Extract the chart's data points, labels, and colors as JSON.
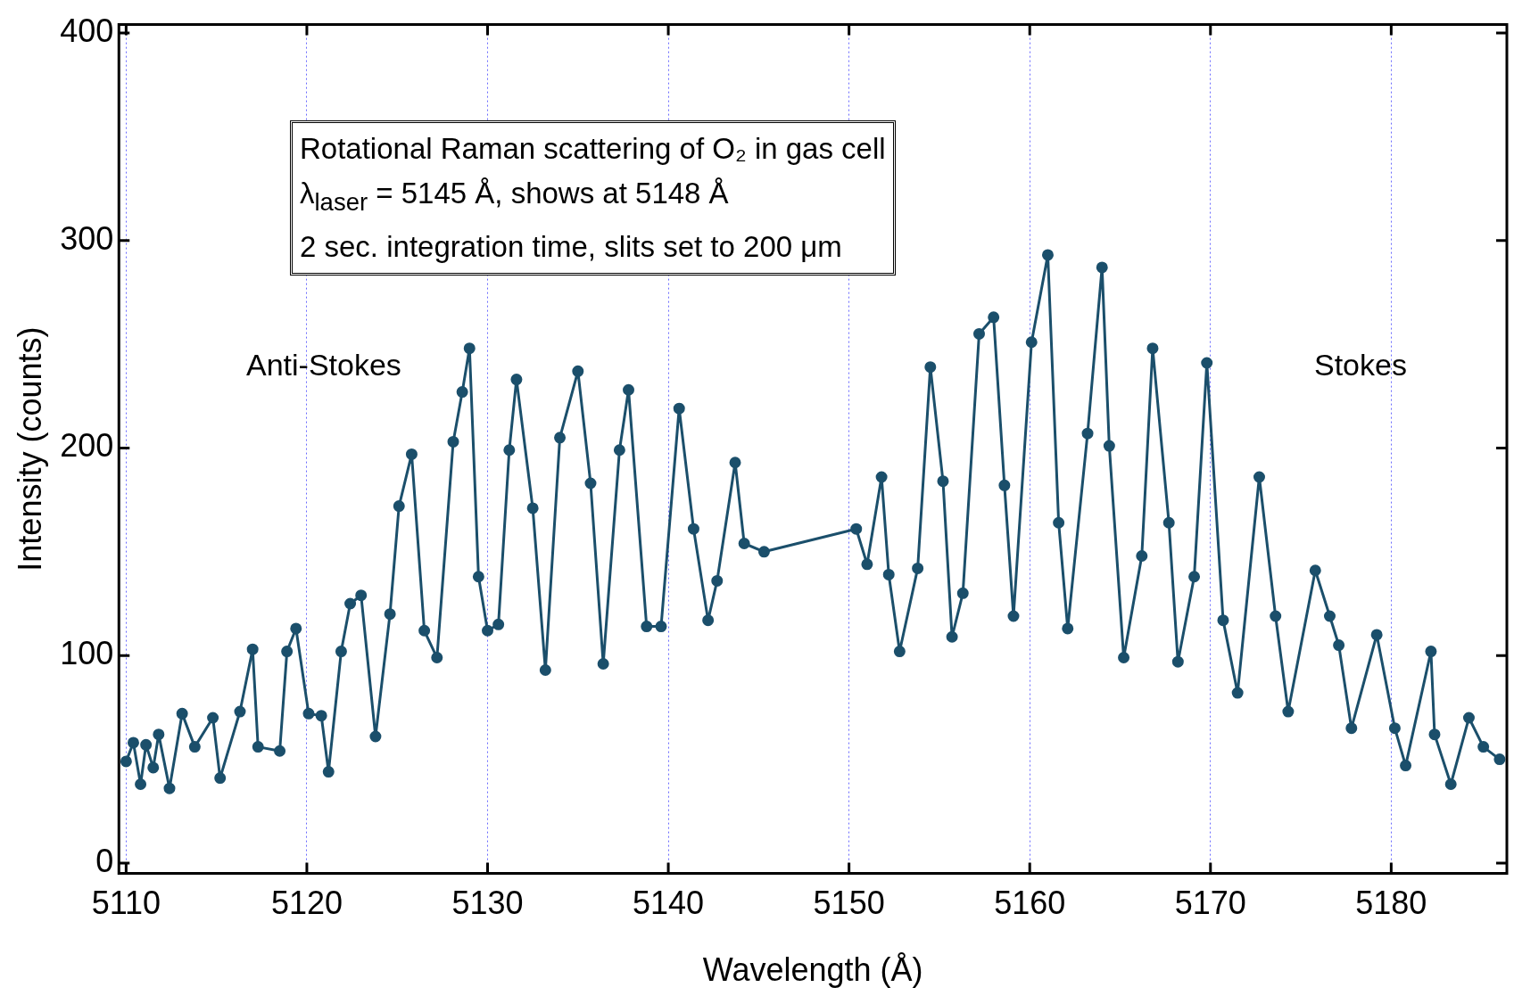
{
  "chart_data": {
    "type": "line",
    "xlabel": "Wavelength (Å)",
    "ylabel": "Intensity (counts)",
    "xlim": [
      5109.6,
      5186.4
    ],
    "xticks": [
      5110,
      5120,
      5130,
      5140,
      5150,
      5160,
      5170,
      5180
    ],
    "ylim": [
      -5,
      404
    ],
    "yticks": [
      0,
      100,
      200,
      300,
      400
    ],
    "grid": "x",
    "marker": "circle",
    "line_style": "solid",
    "annotations": [
      "Rotational Raman scattering of O₂ in gas cell",
      "λ$_{laser}$ = 5145 Å, shows at 5148 Å",
      "2 sec. integration time, slits set to 200 μm",
      "Anti-Stokes",
      "Stokes"
    ],
    "series": [
      {
        "color": "#1b4f6b",
        "x": [
          5110.0,
          5110.4,
          5110.8,
          5111.1,
          5111.5,
          5111.8,
          5112.4,
          5113.1,
          5113.8,
          5114.8,
          5115.2,
          5116.3,
          5117.0,
          5117.3,
          5118.5,
          5118.9,
          5119.4,
          5120.1,
          5120.8,
          5121.2,
          5121.9,
          5122.4,
          5123.0,
          5123.8,
          5124.6,
          5125.1,
          5125.8,
          5126.5,
          5127.2,
          5128.1,
          5128.6,
          5129.0,
          5129.5,
          5130.0,
          5130.6,
          5131.2,
          5131.6,
          5132.5,
          5133.2,
          5134.0,
          5135.0,
          5135.7,
          5136.4,
          5137.3,
          5137.8,
          5138.8,
          5139.6,
          5140.6,
          5141.4,
          5142.2,
          5142.7,
          5143.7,
          5144.2,
          5145.3,
          5150.4,
          5151.0,
          5151.8,
          5152.2,
          5152.8,
          5153.8,
          5154.5,
          5155.2,
          5155.7,
          5156.3,
          5157.2,
          5158.0,
          5158.6,
          5159.1,
          5160.1,
          5161.0,
          5161.6,
          5162.1,
          5163.2,
          5164.0,
          5164.4,
          5165.2,
          5166.2,
          5166.8,
          5167.7,
          5168.2,
          5169.1,
          5169.8,
          5170.7,
          5171.5,
          5172.7,
          5173.6,
          5174.3,
          5175.8,
          5176.6,
          5177.1,
          5177.8,
          5179.2,
          5180.2,
          5180.8,
          5182.2,
          5182.4,
          5183.3,
          5184.3,
          5185.1,
          5186.0
        ],
        "values": [
          49,
          58,
          38,
          57,
          46,
          62,
          36,
          72,
          56,
          70,
          41,
          73,
          103,
          56,
          54,
          102,
          113,
          72,
          71,
          44,
          102,
          125,
          129,
          61,
          120,
          172,
          197,
          112,
          99,
          203,
          227,
          248,
          138,
          112,
          115,
          199,
          233,
          171,
          93,
          205,
          237,
          183,
          96,
          199,
          228,
          114,
          114,
          219,
          161,
          117,
          136,
          193,
          154,
          150,
          161,
          144,
          186,
          139,
          102,
          142,
          239,
          184,
          109,
          130,
          255,
          263,
          182,
          119,
          251,
          293,
          164,
          113,
          207,
          287,
          201,
          99,
          148,
          248,
          164,
          97,
          138,
          241,
          117,
          82,
          186,
          119,
          73,
          141,
          119,
          105,
          65,
          110,
          65,
          47,
          102,
          62,
          38,
          70,
          56,
          50
        ]
      }
    ]
  }
}
